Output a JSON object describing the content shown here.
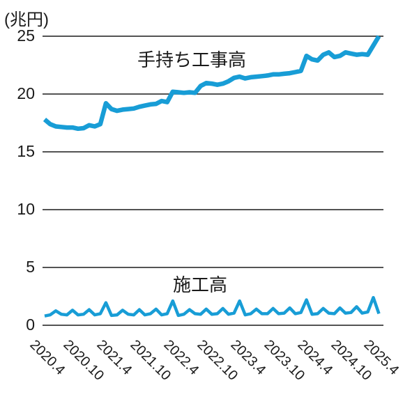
{
  "chart_data": {
    "type": "line",
    "title": "",
    "unit_label": "(兆円)",
    "ylabel": "兆円",
    "xlabel": "",
    "ylim": [
      0,
      25
    ],
    "ytick_step": 5,
    "grid": "horizontal",
    "legend_position": "inline-annotations",
    "line_color": "#189dd6",
    "grid_color": "#1a1a1a",
    "text_color": "#1a1a1a",
    "ytick_labels": [
      "0",
      "5",
      "10",
      "15",
      "20",
      "25"
    ],
    "xtick_labels": [
      "2020.4",
      "2020.10",
      "2021.4",
      "2021.10",
      "2022.4",
      "2022.10",
      "2023.4",
      "2023.10",
      "2024.4",
      "2024.10",
      "2025.4"
    ],
    "x": [
      "2020.4",
      "2020.5",
      "2020.6",
      "2020.7",
      "2020.8",
      "2020.9",
      "2020.10",
      "2020.11",
      "2020.12",
      "2021.1",
      "2021.2",
      "2021.3",
      "2021.4",
      "2021.5",
      "2021.6",
      "2021.7",
      "2021.8",
      "2021.9",
      "2021.10",
      "2021.11",
      "2021.12",
      "2022.1",
      "2022.2",
      "2022.3",
      "2022.4",
      "2022.5",
      "2022.6",
      "2022.7",
      "2022.8",
      "2022.9",
      "2022.10",
      "2022.11",
      "2022.12",
      "2023.1",
      "2023.2",
      "2023.3",
      "2023.4",
      "2023.5",
      "2023.6",
      "2023.7",
      "2023.8",
      "2023.9",
      "2023.10",
      "2023.11",
      "2023.12",
      "2024.1",
      "2024.2",
      "2024.3",
      "2024.4",
      "2024.5",
      "2024.6",
      "2024.7",
      "2024.8",
      "2024.9",
      "2024.10",
      "2024.11",
      "2024.12",
      "2025.1",
      "2025.2",
      "2025.3",
      "2025.4"
    ],
    "series": [
      {
        "name": "手持ち工事高",
        "values": [
          17.8,
          17.4,
          17.2,
          17.15,
          17.1,
          17.1,
          17.0,
          17.05,
          17.3,
          17.2,
          17.4,
          19.2,
          18.7,
          18.55,
          18.65,
          18.7,
          18.75,
          18.9,
          19.0,
          19.1,
          19.15,
          19.4,
          19.3,
          20.2,
          20.15,
          20.1,
          20.15,
          20.1,
          20.7,
          20.95,
          20.9,
          20.8,
          20.9,
          21.1,
          21.4,
          21.5,
          21.35,
          21.45,
          21.5,
          21.55,
          21.6,
          21.7,
          21.7,
          21.75,
          21.8,
          21.9,
          22.0,
          23.3,
          23.0,
          22.9,
          23.4,
          23.6,
          23.2,
          23.3,
          23.6,
          23.5,
          23.4,
          23.45,
          23.4,
          24.2,
          25.0
        ]
      },
      {
        "name": "施工高",
        "values": [
          0.8,
          0.9,
          1.25,
          0.95,
          0.9,
          1.3,
          0.9,
          0.95,
          1.35,
          0.9,
          1.0,
          1.95,
          0.85,
          0.9,
          1.3,
          0.95,
          0.9,
          1.35,
          0.9,
          1.0,
          1.4,
          0.9,
          1.0,
          2.1,
          0.85,
          0.95,
          1.35,
          1.0,
          0.95,
          1.4,
          0.95,
          1.0,
          1.45,
          0.95,
          1.05,
          2.1,
          0.9,
          1.0,
          1.4,
          1.0,
          1.0,
          1.45,
          1.0,
          1.05,
          1.5,
          1.0,
          1.1,
          2.2,
          0.95,
          1.0,
          1.45,
          1.05,
          1.0,
          1.5,
          1.05,
          1.1,
          1.6,
          1.05,
          1.15,
          2.4,
          1.0
        ]
      }
    ]
  }
}
